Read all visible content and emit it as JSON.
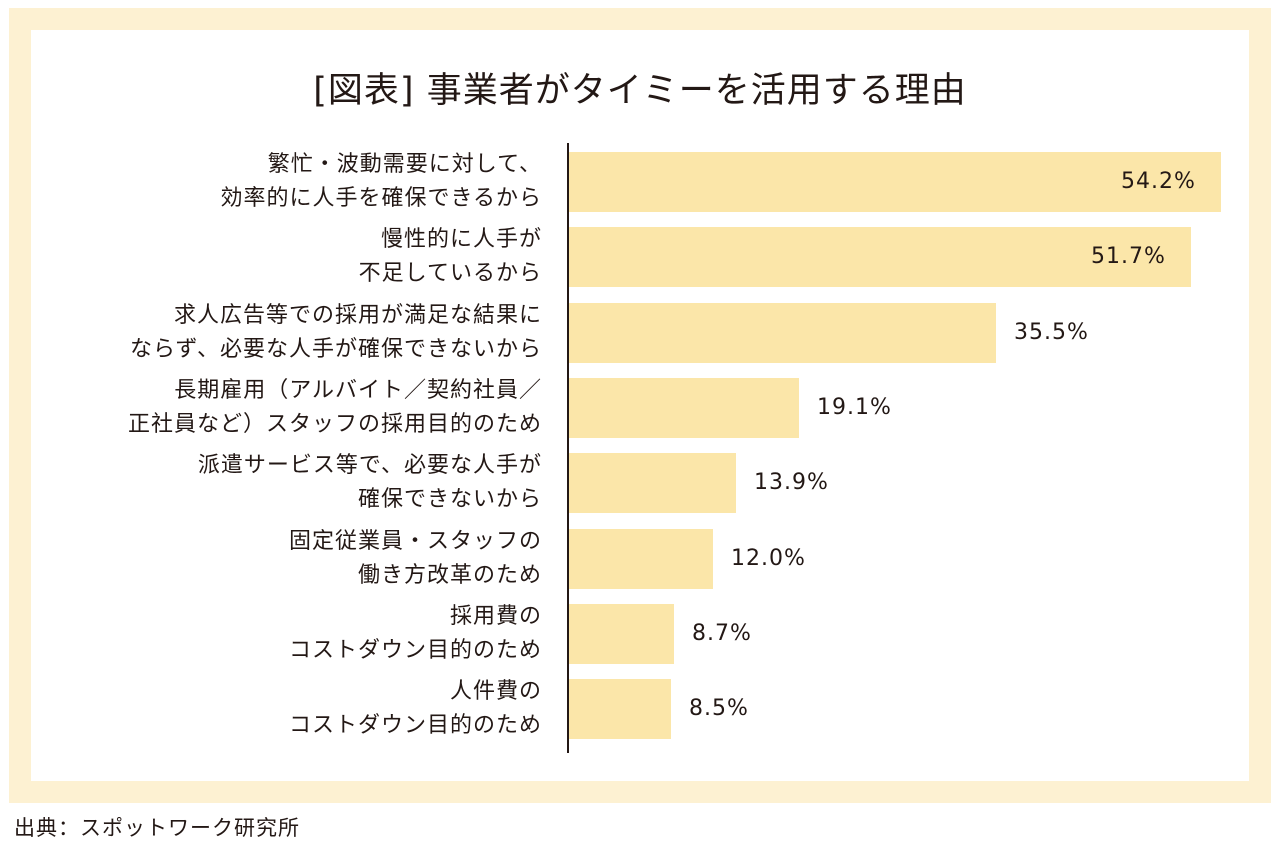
{
  "chart_data": {
    "type": "bar",
    "orientation": "horizontal",
    "title": "[図表] 事業者がタイミーを活用する理由",
    "categories": [
      [
        "繁忙・波動需要に対して、",
        "効率的に人手を確保できるから"
      ],
      [
        "慢性的に人手が",
        "不足しているから"
      ],
      [
        "求人広告等での採用が満足な結果に",
        "ならず、必要な人手が確保できないから"
      ],
      [
        "長期雇用（アルバイト／契約社員／",
        "正社員など）スタッフの採用目的のため"
      ],
      [
        "派遣サービス等で、必要な人手が",
        "確保できないから"
      ],
      [
        "固定従業員・スタッフの",
        "働き方改革のため"
      ],
      [
        "採用費の",
        "コストダウン目的のため"
      ],
      [
        "人件費の",
        "コストダウン目的のため"
      ]
    ],
    "values": [
      54.2,
      51.7,
      35.5,
      19.1,
      13.9,
      12.0,
      8.7,
      8.5
    ],
    "value_labels": [
      "54.2%",
      "51.7%",
      "35.5%",
      "19.1%",
      "13.9%",
      "12.0%",
      "8.7%",
      "8.5%"
    ],
    "xlim": [
      0,
      54.2
    ],
    "bar_color": "#fbe6a9",
    "grid": false
  },
  "source": "出典：スポットワーク研究所",
  "colors": {
    "frame": "#fdf1d2",
    "bar": "#fbe6a9",
    "text": "#231815"
  }
}
